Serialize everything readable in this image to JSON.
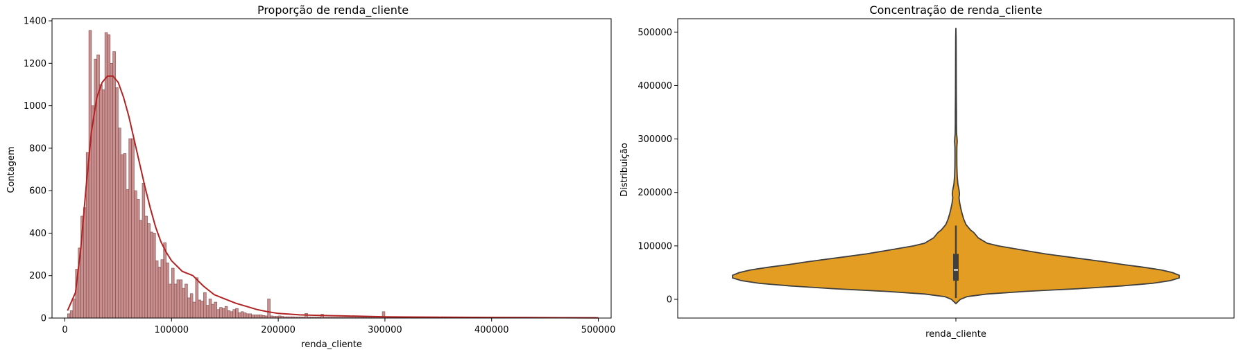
{
  "chart_data": [
    {
      "type": "bar",
      "title": "Proporção de renda_cliente",
      "xlabel": "renda_cliente",
      "ylabel": "Contagem",
      "xlim": [
        -12000,
        512000
      ],
      "ylim": [
        0,
        1410
      ],
      "xticks": [
        0,
        100000,
        200000,
        300000,
        400000,
        500000
      ],
      "yticks": [
        0,
        200,
        400,
        600,
        800,
        1000,
        1200,
        1400
      ],
      "bin_width": 2500,
      "bin_start": 2500,
      "bar_color": "#c98e8e",
      "bar_edge_color": "#7a4a4a",
      "kde_color": "#b22222",
      "values": [
        20,
        35,
        90,
        230,
        330,
        480,
        520,
        780,
        1355,
        1000,
        1220,
        1240,
        1100,
        1075,
        1345,
        1335,
        1200,
        1255,
        1085,
        895,
        770,
        775,
        605,
        845,
        845,
        600,
        560,
        460,
        635,
        480,
        445,
        405,
        400,
        270,
        240,
        275,
        355,
        260,
        160,
        235,
        160,
        180,
        180,
        140,
        160,
        95,
        115,
        75,
        190,
        85,
        80,
        120,
        60,
        90,
        65,
        75,
        40,
        50,
        45,
        55,
        35,
        30,
        40,
        45,
        25,
        30,
        25,
        20,
        20,
        15,
        15,
        15,
        15,
        12,
        10,
        90,
        10,
        8,
        8,
        10,
        8,
        6,
        6,
        6,
        6,
        5,
        5,
        5,
        5,
        22,
        5,
        5,
        5,
        5,
        5,
        18,
        4,
        4,
        4,
        4,
        4,
        4,
        4,
        4,
        4,
        4,
        4,
        4,
        4,
        4,
        4,
        4,
        4,
        4,
        4,
        4,
        4,
        4,
        30,
        4,
        3,
        3,
        3,
        3,
        3,
        3,
        3,
        3,
        3,
        3,
        3,
        3,
        3,
        3,
        3,
        3,
        3,
        3,
        3,
        3,
        3,
        3,
        3,
        3,
        3,
        3,
        3,
        3,
        3,
        3,
        3,
        3,
        3,
        3,
        3,
        3,
        3,
        3,
        3,
        3,
        3,
        3,
        3,
        3,
        3,
        3,
        3,
        3,
        3,
        3,
        3,
        3,
        3,
        3,
        3,
        3,
        3,
        3,
        3,
        3,
        3,
        3,
        3,
        3,
        3,
        3,
        3,
        3,
        3,
        3,
        3,
        3,
        3,
        3,
        3,
        3,
        3,
        3
      ],
      "kde": {
        "x": [
          2500,
          10000,
          15000,
          20000,
          25000,
          30000,
          35000,
          40000,
          45000,
          50000,
          55000,
          60000,
          65000,
          70000,
          75000,
          80000,
          85000,
          90000,
          95000,
          100000,
          110000,
          120000,
          130000,
          140000,
          150000,
          160000,
          170000,
          180000,
          190000,
          200000,
          220000,
          240000,
          260000,
          280000,
          300000,
          320000,
          350000,
          400000,
          450000,
          500000
        ],
        "y": [
          35,
          120,
          330,
          620,
          880,
          1040,
          1110,
          1140,
          1140,
          1110,
          1040,
          950,
          840,
          730,
          620,
          520,
          430,
          360,
          310,
          270,
          220,
          200,
          150,
          110,
          90,
          70,
          55,
          40,
          30,
          22,
          15,
          12,
          10,
          8,
          6,
          5,
          4,
          3,
          2,
          1
        ]
      }
    },
    {
      "type": "violin",
      "title": "Concentração de renda_cliente",
      "xlabel": "renda_cliente",
      "ylabel": "Distribuição",
      "ylim": [
        -35000,
        525000
      ],
      "yticks": [
        0,
        100000,
        200000,
        300000,
        400000,
        500000
      ],
      "fill_color": "#e39d22",
      "edge_color": "#3f3f3f",
      "box_color": "#404040",
      "median_color": "#ffffff",
      "quartiles": [
        35000,
        55000,
        85000
      ],
      "whiskers": [
        2500,
        138000
      ],
      "density_profile": [
        [
          -8000,
          0.0
        ],
        [
          0,
          0.02
        ],
        [
          5000,
          0.05
        ],
        [
          10000,
          0.14
        ],
        [
          15000,
          0.32
        ],
        [
          20000,
          0.55
        ],
        [
          25000,
          0.74
        ],
        [
          30000,
          0.88
        ],
        [
          35000,
          0.96
        ],
        [
          40000,
          1.0
        ],
        [
          45000,
          1.0
        ],
        [
          50000,
          0.97
        ],
        [
          55000,
          0.92
        ],
        [
          60000,
          0.84
        ],
        [
          65000,
          0.75
        ],
        [
          70000,
          0.67
        ],
        [
          75000,
          0.58
        ],
        [
          80000,
          0.49
        ],
        [
          85000,
          0.4
        ],
        [
          90000,
          0.33
        ],
        [
          95000,
          0.26
        ],
        [
          100000,
          0.19
        ],
        [
          105000,
          0.14
        ],
        [
          110000,
          0.12
        ],
        [
          115000,
          0.1
        ],
        [
          120000,
          0.09
        ],
        [
          125000,
          0.08
        ],
        [
          130000,
          0.065
        ],
        [
          140000,
          0.045
        ],
        [
          150000,
          0.035
        ],
        [
          160000,
          0.028
        ],
        [
          170000,
          0.022
        ],
        [
          180000,
          0.017
        ],
        [
          190000,
          0.014
        ],
        [
          197000,
          0.016
        ],
        [
          205000,
          0.014
        ],
        [
          215000,
          0.009
        ],
        [
          230000,
          0.006
        ],
        [
          250000,
          0.0045
        ],
        [
          270000,
          0.004
        ],
        [
          285000,
          0.0045
        ],
        [
          295000,
          0.006
        ],
        [
          302000,
          0.005
        ],
        [
          310000,
          0.003
        ],
        [
          330000,
          0.0025
        ],
        [
          350000,
          0.0025
        ],
        [
          380000,
          0.002
        ],
        [
          420000,
          0.0015
        ],
        [
          460000,
          0.0012
        ],
        [
          490000,
          0.001
        ],
        [
          508000,
          0.0
        ]
      ]
    }
  ]
}
